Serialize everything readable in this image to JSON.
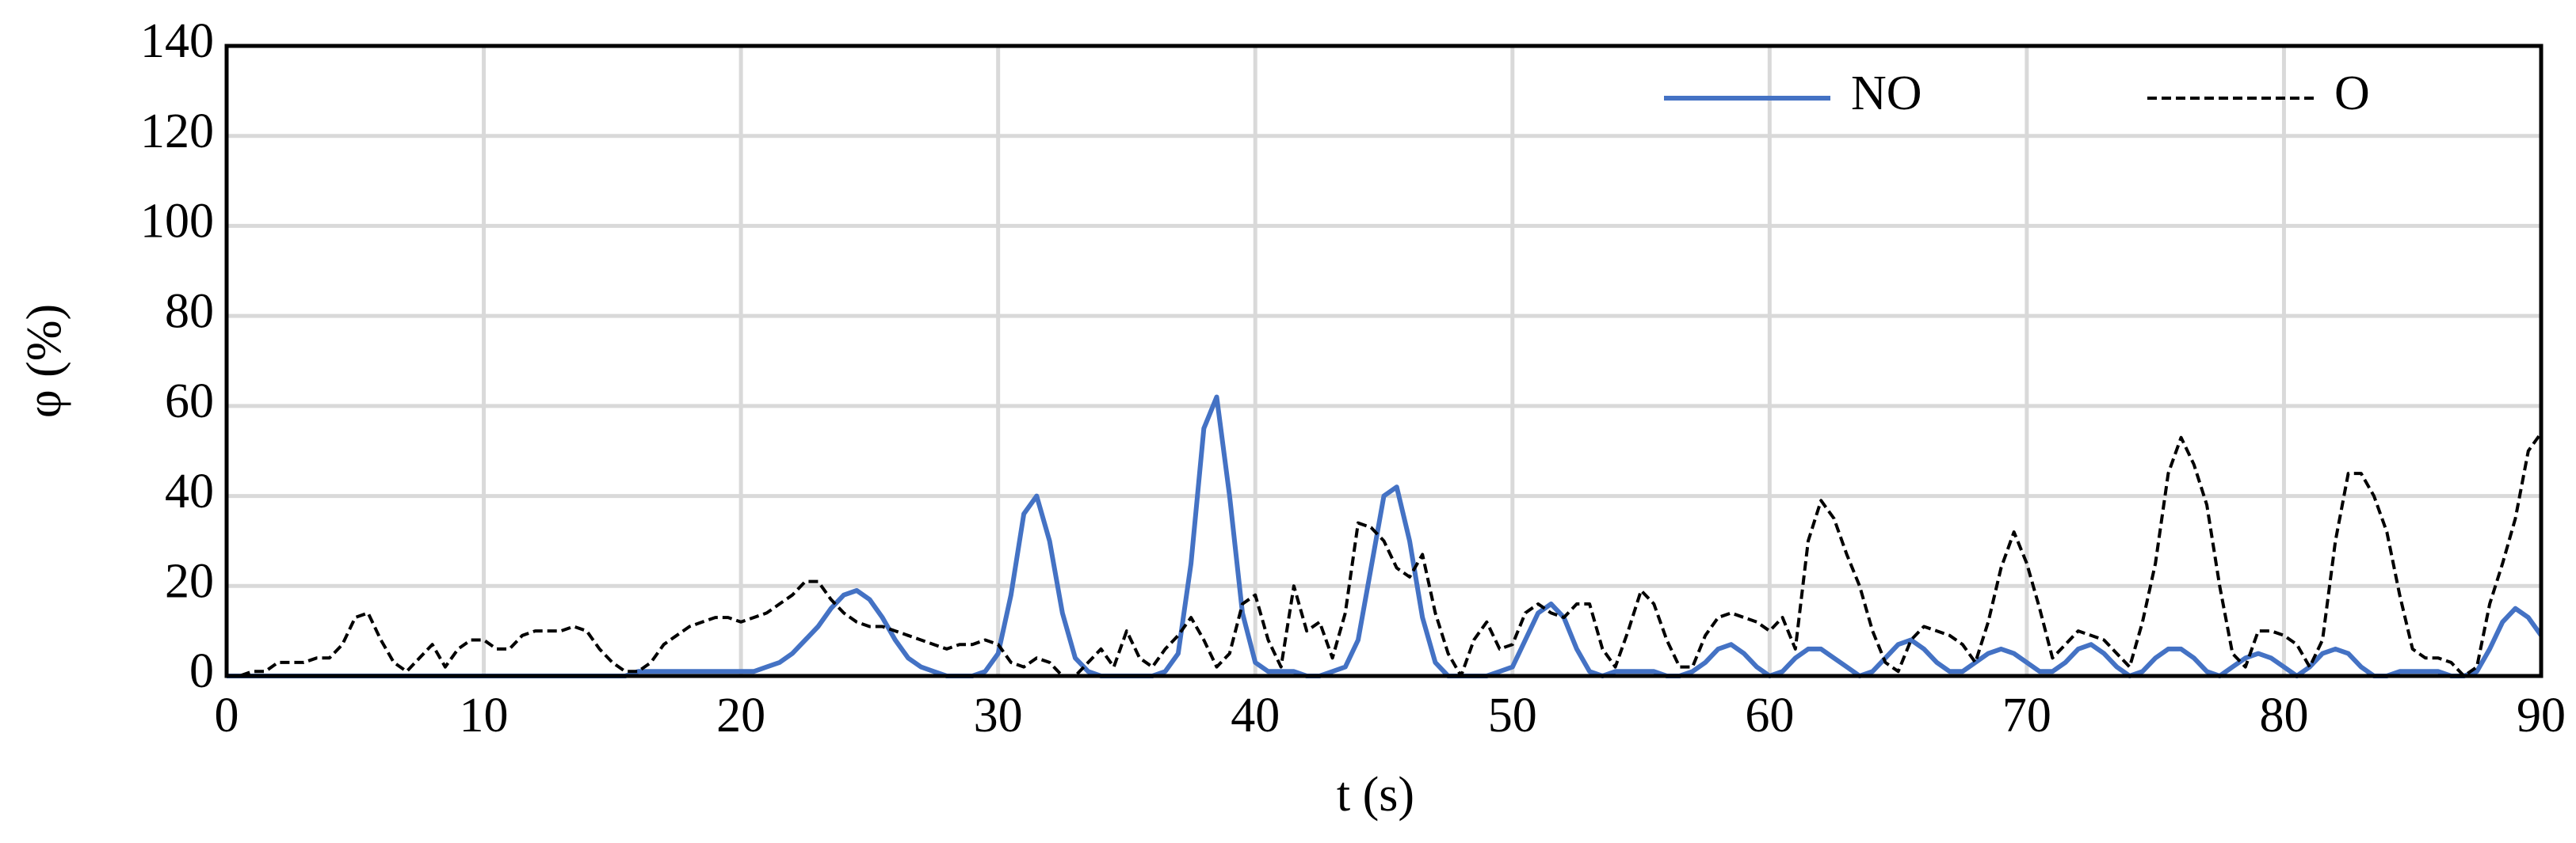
{
  "chart_data": {
    "type": "line",
    "xlabel": "t (s)",
    "ylabel": "φ  (%)",
    "xlim": [
      0,
      90
    ],
    "xticks": [
      0,
      10,
      20,
      30,
      40,
      50,
      60,
      70,
      80,
      90
    ],
    "ylim": [
      0,
      140
    ],
    "yticks": [
      0,
      20,
      40,
      60,
      80,
      100,
      120,
      140
    ],
    "grid": true,
    "legend": "top-right",
    "x": [
      0,
      0.5,
      1,
      1.5,
      2,
      2.5,
      3,
      3.5,
      4,
      4.5,
      5,
      5.5,
      6,
      6.5,
      7,
      7.5,
      8,
      8.5,
      9,
      9.5,
      10,
      10.5,
      11,
      11.5,
      12,
      12.5,
      13,
      13.5,
      14,
      14.5,
      15,
      15.5,
      16,
      16.5,
      17,
      17.5,
      18,
      18.5,
      19,
      19.5,
      20,
      20.5,
      21,
      21.5,
      22,
      22.5,
      23,
      23.5,
      24,
      24.5,
      25,
      25.5,
      26,
      26.5,
      27,
      27.5,
      28,
      28.5,
      29,
      29.5,
      30,
      30.5,
      31,
      31.5,
      32,
      32.5,
      33,
      33.5,
      34,
      34.5,
      35,
      35.5,
      36,
      36.5,
      37,
      37.5,
      38,
      38.5,
      39,
      39.5,
      40,
      40.5,
      41,
      41.5,
      42,
      42.5,
      43,
      43.5,
      44,
      44.5,
      45,
      45.5,
      46,
      46.5,
      47,
      47.5,
      48,
      48.5,
      49,
      49.5,
      50,
      50.5,
      51,
      51.5,
      52,
      52.5,
      53,
      53.5,
      54,
      54.5,
      55,
      55.5,
      56,
      56.5,
      57,
      57.5,
      58,
      58.5,
      59,
      59.5,
      60,
      60.5,
      61,
      61.5,
      62,
      62.5,
      63,
      63.5,
      64,
      64.5,
      65,
      65.5,
      66,
      66.5,
      67,
      67.5,
      68,
      68.5,
      69,
      69.5,
      70,
      70.5,
      71,
      71.5,
      72,
      72.5,
      73,
      73.5,
      74,
      74.5,
      75,
      75.5,
      76,
      76.5,
      77,
      77.5,
      78,
      78.5,
      79,
      79.5,
      80,
      80.5,
      81,
      81.5,
      82,
      82.5,
      83,
      83.5,
      84,
      84.5,
      85,
      85.5,
      86,
      86.5,
      87,
      87.5,
      88,
      88.5,
      89,
      89.5,
      90
    ],
    "series": [
      {
        "name": "NO",
        "color": "#4472c4",
        "dashed": false,
        "values": [
          0,
          0,
          0,
          0,
          0,
          0,
          0,
          0,
          0,
          0,
          0,
          0,
          0,
          0,
          0,
          0,
          0,
          0,
          0,
          0,
          0,
          0,
          0,
          0,
          0,
          0,
          0,
          0,
          0,
          0,
          0,
          0,
          1,
          1,
          1,
          1,
          1,
          1,
          1,
          1,
          1,
          1,
          2,
          3,
          5,
          8,
          11,
          15,
          18,
          19,
          17,
          13,
          8,
          4,
          2,
          1,
          0,
          0,
          0,
          1,
          5,
          18,
          36,
          40,
          30,
          14,
          4,
          1,
          0,
          0,
          0,
          0,
          0,
          1,
          5,
          25,
          55,
          62,
          40,
          14,
          3,
          1,
          1,
          1,
          0,
          0,
          1,
          2,
          8,
          24,
          40,
          42,
          30,
          13,
          3,
          0,
          0,
          0,
          0,
          1,
          2,
          8,
          14,
          16,
          13,
          6,
          1,
          0,
          1,
          1,
          1,
          1,
          0,
          0,
          1,
          3,
          6,
          7,
          5,
          2,
          0,
          1,
          4,
          6,
          6,
          4,
          2,
          0,
          1,
          4,
          7,
          8,
          6,
          3,
          1,
          1,
          3,
          5,
          6,
          5,
          3,
          1,
          1,
          3,
          6,
          7,
          5,
          2,
          0,
          1,
          4,
          6,
          6,
          4,
          1,
          0,
          2,
          4,
          5,
          4,
          2,
          0,
          2,
          5,
          6,
          5,
          2,
          0,
          0,
          1,
          1,
          1,
          1,
          0,
          0,
          1,
          6,
          12,
          15,
          13,
          9
        ]
      },
      {
        "name": "O",
        "color": "#000000",
        "dashed": true,
        "values": [
          0,
          0,
          1,
          1,
          3,
          3,
          3,
          4,
          4,
          7,
          13,
          14,
          8,
          3,
          1,
          4,
          7,
          2,
          6,
          8,
          8,
          6,
          6,
          9,
          10,
          10,
          10,
          11,
          10,
          6,
          3,
          1,
          1,
          3,
          7,
          9,
          11,
          12,
          13,
          13,
          12,
          13,
          14,
          16,
          18,
          21,
          21,
          17,
          14,
          12,
          11,
          11,
          10,
          9,
          8,
          7,
          6,
          7,
          7,
          8,
          7,
          3,
          2,
          4,
          3,
          0,
          0,
          3,
          6,
          2,
          10,
          4,
          2,
          6,
          9,
          13,
          8,
          2,
          5,
          16,
          18,
          8,
          2,
          20,
          10,
          12,
          4,
          14,
          34,
          33,
          30,
          24,
          22,
          27,
          14,
          5,
          0,
          8,
          12,
          6,
          7,
          14,
          16,
          14,
          13,
          16,
          16,
          6,
          2,
          10,
          19,
          16,
          8,
          2,
          2,
          9,
          13,
          14,
          13,
          12,
          10,
          13,
          6,
          30,
          39,
          35,
          27,
          20,
          10,
          3,
          1,
          8,
          11,
          10,
          9,
          7,
          3,
          12,
          24,
          32,
          25,
          15,
          4,
          7,
          10,
          9,
          8,
          5,
          2,
          12,
          25,
          45,
          53,
          47,
          38,
          20,
          5,
          2,
          10,
          10,
          9,
          7,
          2,
          8,
          30,
          45,
          45,
          40,
          32,
          18,
          6,
          4,
          4,
          3,
          0,
          2,
          16,
          25,
          35,
          50,
          54
        ]
      }
    ]
  }
}
